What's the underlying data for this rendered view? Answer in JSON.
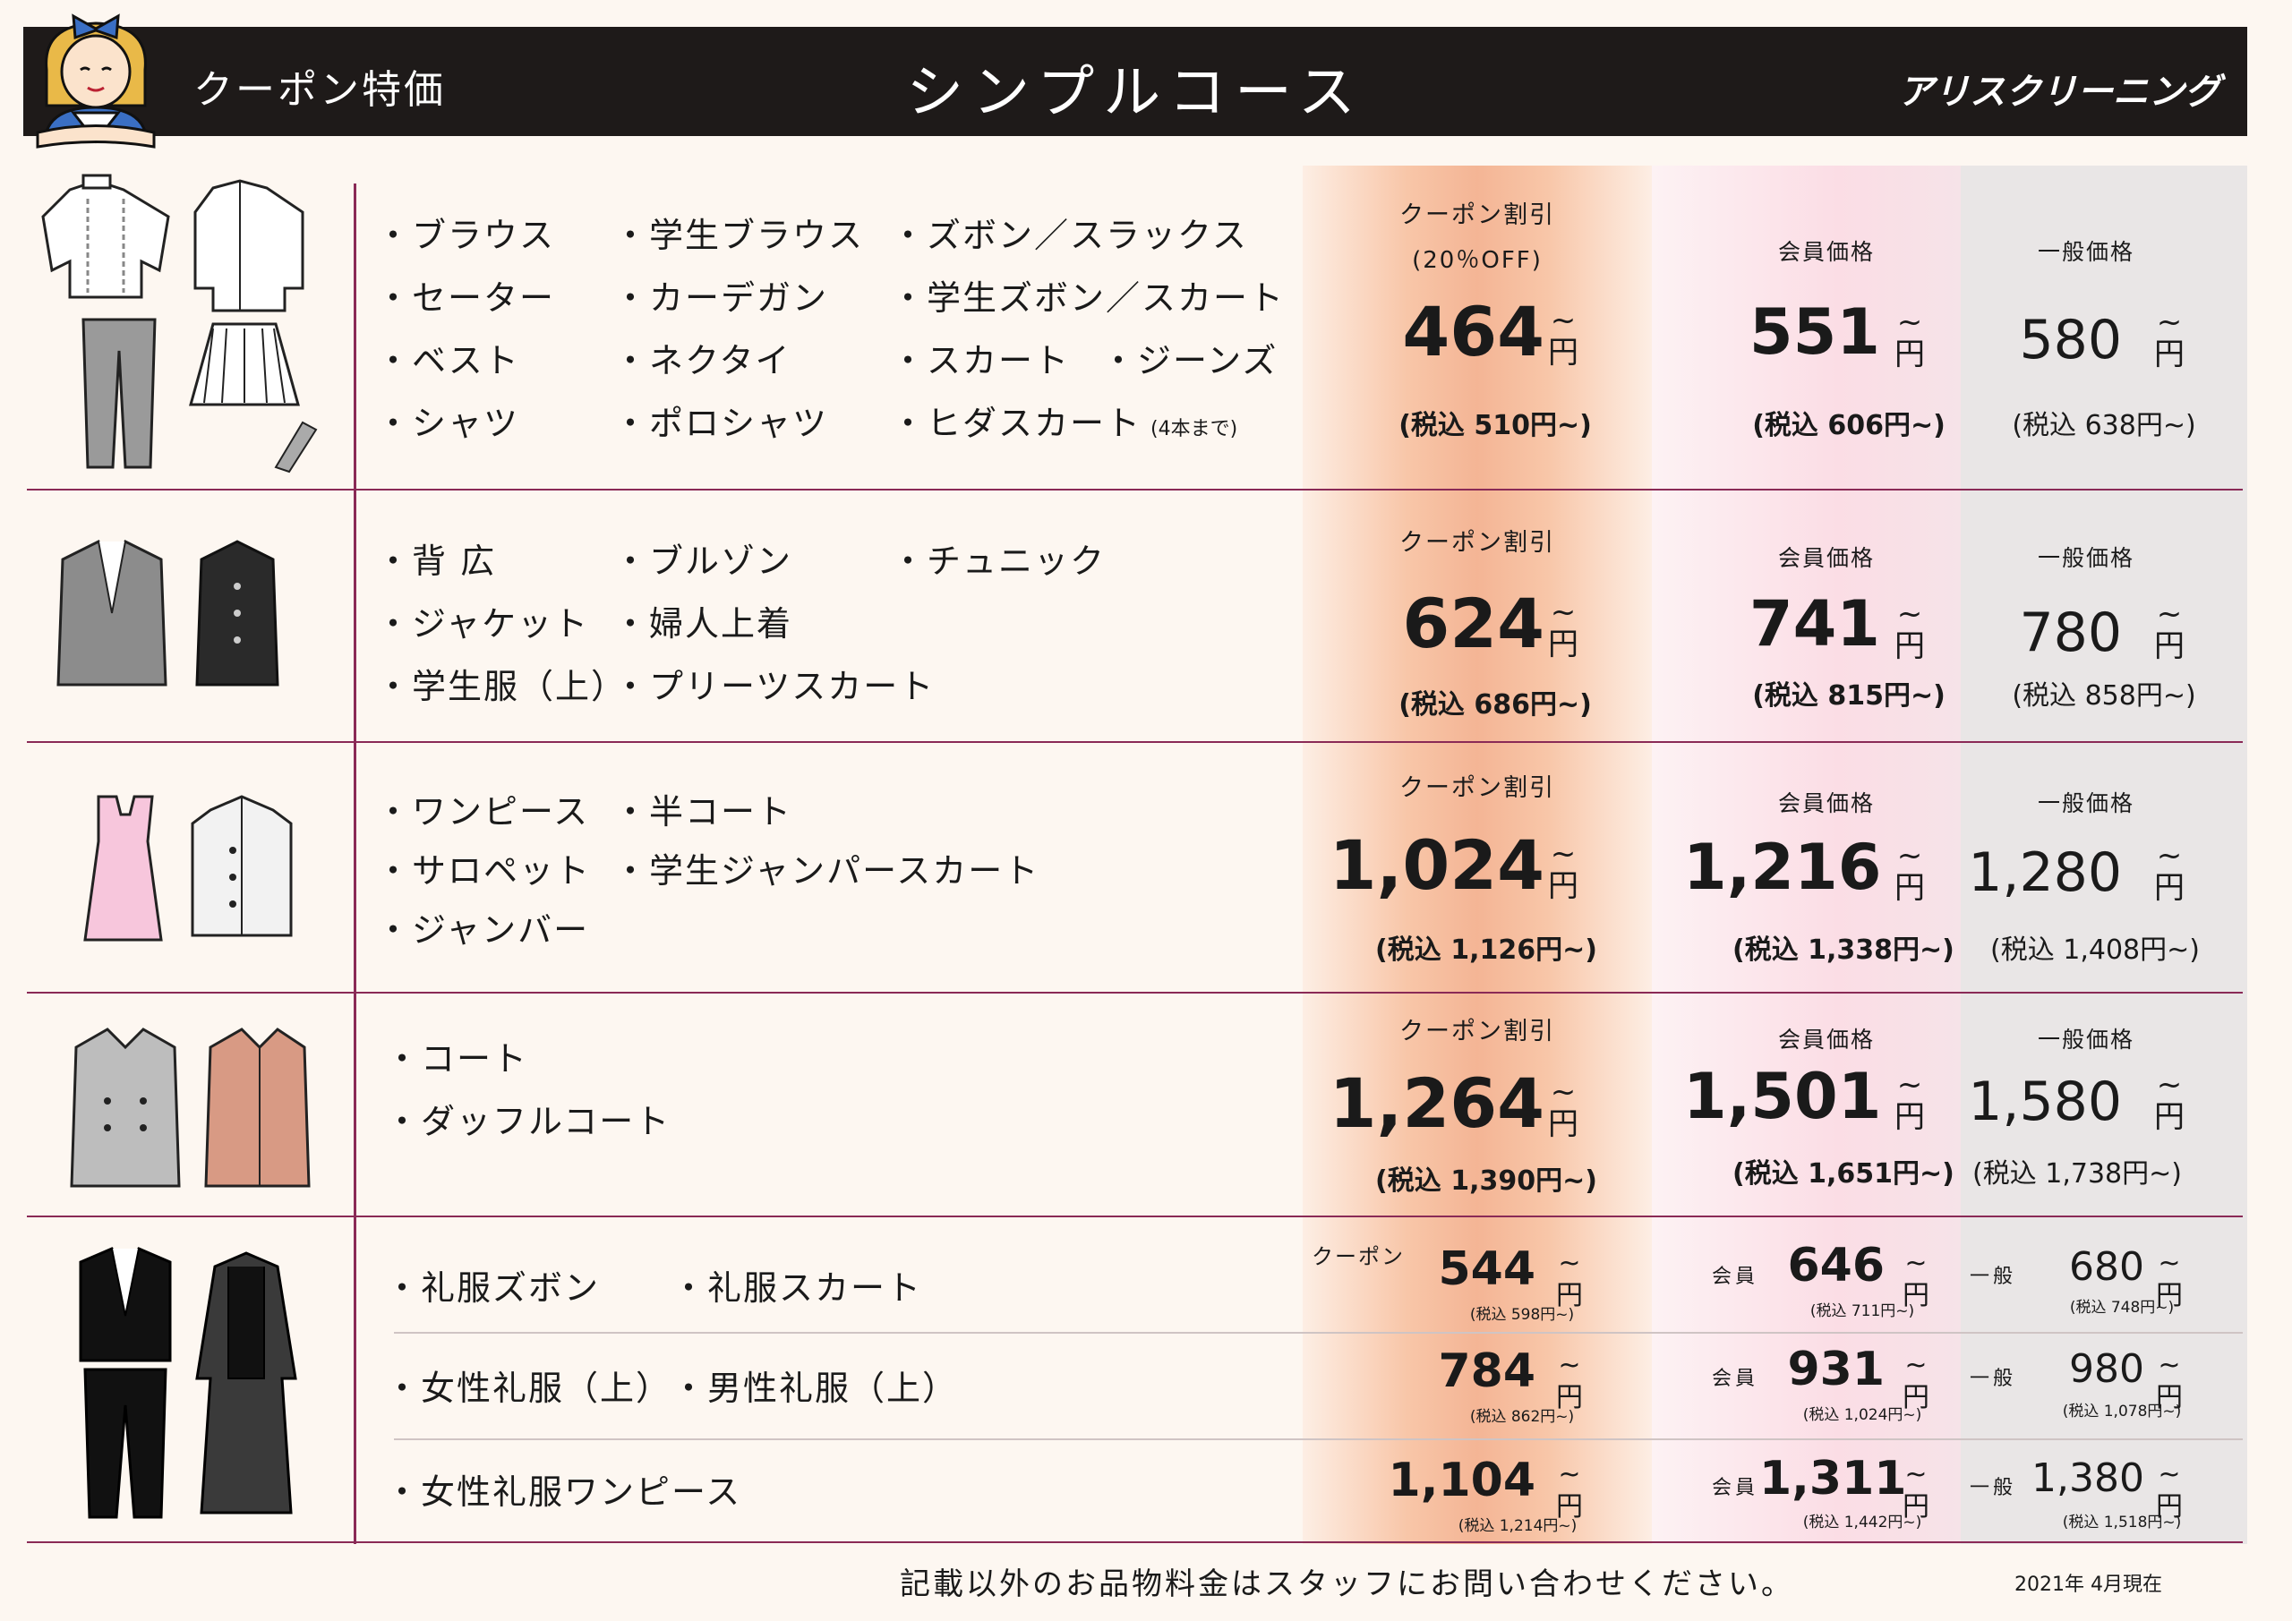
{
  "header": {
    "left": "クーポン特価",
    "title": "シンプルコース",
    "brand": "アリスクリーニング"
  },
  "labels": {
    "coupon": "クーポン割引",
    "off": "(20％OFF)",
    "member": "会員価格",
    "general": "一般価格",
    "yen": "円",
    "coupon_short": "クーポン",
    "member_short": "会員",
    "general_short": "一般"
  },
  "sections": [
    {
      "items": [
        "・ブラウス",
        "・学生ブラウス",
        "・ズボン／スラックス",
        "・セーター",
        "・カーデガン",
        "・学生ズボン／スカート",
        "・ベスト",
        "・ネクタイ",
        "・スカート",
        "・ジーンズ",
        "・シャツ",
        "・ポロシャツ",
        "・ヒダスカート"
      ],
      "note": "(4本まで)",
      "coupon": "464",
      "coupon_tax": "(税込 510円~)",
      "member": "551",
      "member_tax": "(税込 606円~)",
      "general": "580",
      "general_tax": "(税込 638円~)"
    },
    {
      "items": [
        "・背 広",
        "・ブルゾン",
        "・チュニック",
        "・ジャケット",
        "・婦人上着",
        "・学生服（上）",
        "・プリーツスカート"
      ],
      "coupon": "624",
      "coupon_tax": "(税込 686円~)",
      "member": "741",
      "member_tax": "(税込 815円~)",
      "general": "780",
      "general_tax": "(税込 858円~)"
    },
    {
      "items": [
        "・ワンピース",
        "・半コート",
        "・サロペット",
        "・学生ジャンパースカート",
        "・ジャンバー"
      ],
      "coupon": "1,024",
      "coupon_tax": "(税込 1,126円~)",
      "member": "1,216",
      "member_tax": "(税込 1,338円~)",
      "general": "1,280",
      "general_tax": "(税込 1,408円~)"
    },
    {
      "items": [
        "・コート",
        "・ダッフルコート"
      ],
      "coupon": "1,264",
      "coupon_tax": "(税込 1,390円~)",
      "member": "1,501",
      "member_tax": "(税込 1,651円~)",
      "general": "1,580",
      "general_tax": "(税込 1,738円~)"
    }
  ],
  "formal": [
    {
      "items": [
        "・礼服ズボン",
        "・礼服スカート"
      ],
      "coupon": "544",
      "coupon_tax": "(税込 598円~)",
      "member": "646",
      "member_tax": "(税込 711円~)",
      "general": "680",
      "general_tax": "(税込 748円~)"
    },
    {
      "items": [
        "・女性礼服（上）",
        "・男性礼服（上）"
      ],
      "coupon": "784",
      "coupon_tax": "(税込 862円~)",
      "member": "931",
      "member_tax": "(税込 1,024円~)",
      "general": "980",
      "general_tax": "(税込 1,078円~)"
    },
    {
      "items": [
        "・女性礼服ワンピース"
      ],
      "coupon": "1,104",
      "coupon_tax": "(税込 1,214円~)",
      "member": "1,311",
      "member_tax": "(税込 1,442円~)",
      "general": "1,380",
      "general_tax": "(税込 1,518円~)"
    }
  ],
  "footer": {
    "note": "記載以外のお品物料金はスタッフにお問い合わせください。",
    "date": "2021年 4月現在"
  }
}
